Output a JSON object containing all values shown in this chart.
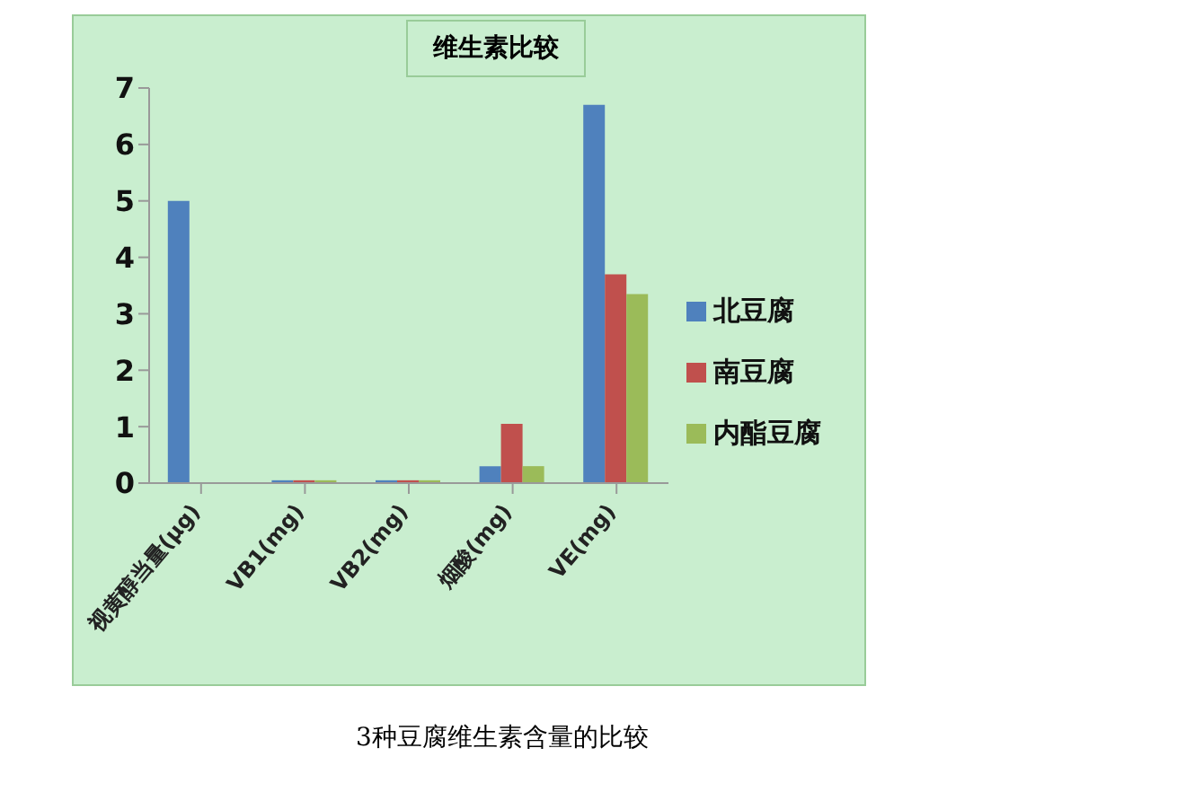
{
  "chart_data": {
    "type": "bar",
    "title": "维生素比较",
    "categories": [
      "视黄醇当量(μg)",
      "VB1(mg)",
      "VB2(mg)",
      "烟酸(mg)",
      "VE(mg)"
    ],
    "series": [
      {
        "name": "北豆腐",
        "color": "#4f81bd",
        "values": [
          5.0,
          0.05,
          0.05,
          0.3,
          6.7
        ]
      },
      {
        "name": "南豆腐",
        "color": "#c0504d",
        "values": [
          null,
          0.05,
          0.05,
          1.05,
          3.7
        ]
      },
      {
        "name": "内酯豆腐",
        "color": "#9bbb59",
        "values": [
          null,
          0.05,
          0.05,
          0.3,
          3.35
        ]
      }
    ],
    "ylim": [
      0,
      7
    ],
    "yticks": [
      0,
      1,
      2,
      3,
      4,
      5,
      6,
      7
    ],
    "grid": false,
    "legend": "right",
    "annotations": [
      "3种豆腐维生素含量的比较"
    ]
  }
}
